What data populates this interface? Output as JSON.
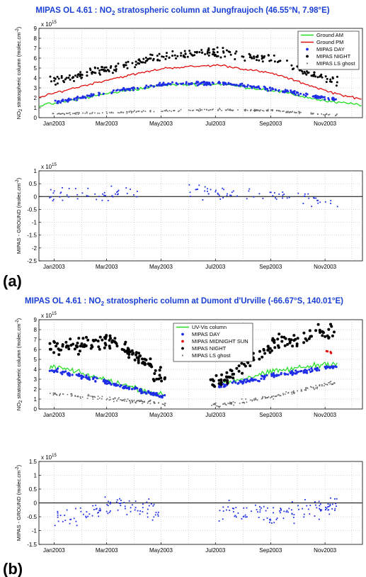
{
  "panels": [
    {
      "label": "(a)",
      "title_pre": "MIPAS OL 4.61 : NO",
      "title_sub": "2",
      "title_post": " stratospheric column at Jungfraujoch (46.55°N, 7.98°E)"
    },
    {
      "label": "(b)",
      "title_pre": "MIPAS OL 4.61 : NO",
      "title_sub": "2",
      "title_post": " stratospheric column at Dumont d'Urville (-66.67°S, 140.01°E)"
    }
  ],
  "colors": {
    "title": "#1a3fd6",
    "ground_am": "#22dd22",
    "ground_pm": "#e01010",
    "uvvis": "#22dd22",
    "mipas_day": "#1f2ee6",
    "mipas_midnight_sun": "#e01010",
    "mipas_night": "#000000",
    "ghost": "#666666",
    "diff": "#1f2ee6"
  },
  "chart_data": [
    {
      "type": "scatter",
      "panel": "a-top",
      "ylabel_pre": "NO",
      "ylabel_sub": "2",
      "ylabel_post": " stratospheric column (molec.cm",
      "ylabel_sup": "-2",
      "ylabel_end": ")",
      "exponent_label": "x 10",
      "exponent_value": "15",
      "ylim": [
        0,
        9
      ],
      "yticks": [
        "0",
        "1",
        "2",
        "3",
        "4",
        "5",
        "6",
        "7",
        "8",
        "9"
      ],
      "xticks": [
        "Jan2003",
        "Mar2003",
        "May2003",
        "Jul2003",
        "Sep2003",
        "Nov2003"
      ],
      "grid": true,
      "legend_placement": "top-right",
      "legend": [
        "Ground AM",
        "Ground PM",
        "MIPAS DAY",
        "MIPAS NIGHT",
        "MIPAS LS ghost"
      ],
      "series": [
        {
          "name": "Ground AM",
          "style": "line",
          "x": [
            "Dec2002",
            "Jan2003",
            "Mar2003",
            "May2003",
            "Jul2003",
            "Sep2003",
            "Nov2003",
            "Dec2003"
          ],
          "values": [
            1.2,
            1.5,
            2.5,
            3.3,
            3.4,
            2.7,
            1.6,
            1.3
          ]
        },
        {
          "name": "Ground PM",
          "style": "line",
          "x": [
            "Dec2002",
            "Jan2003",
            "Mar2003",
            "May2003",
            "Jul2003",
            "Sep2003",
            "Nov2003",
            "Dec2003"
          ],
          "values": [
            2.0,
            2.6,
            3.9,
            5.0,
            5.3,
            4.4,
            2.6,
            1.8
          ]
        },
        {
          "name": "MIPAS DAY",
          "style": "dots",
          "x": [
            "Jan2003",
            "Mar2003",
            "May2003",
            "Jul2003",
            "Sep2003",
            "Nov2003"
          ],
          "values": [
            1.6,
            2.6,
            3.4,
            3.5,
            2.8,
            1.9
          ]
        },
        {
          "name": "MIPAS NIGHT",
          "style": "dots",
          "x": [
            "Jan2003",
            "Mar2003",
            "May2003",
            "Jul2003",
            "Sep2003",
            "Nov2003"
          ],
          "values": [
            3.7,
            5.0,
            6.3,
            6.6,
            5.8,
            3.8
          ]
        },
        {
          "name": "MIPAS LS ghost",
          "style": "dots",
          "x": [
            "Jan2003",
            "Mar2003",
            "May2003",
            "Jul2003",
            "Sep2003",
            "Nov2003"
          ],
          "values": [
            0.4,
            0.5,
            0.7,
            0.8,
            0.7,
            0.3
          ]
        }
      ]
    },
    {
      "type": "scatter",
      "panel": "a-bottom",
      "ylabel_pre": "MIPAS - GROUND (molec.cm",
      "ylabel_sup": "-2",
      "ylabel_end": ")",
      "exponent_label": "x 10",
      "exponent_value": "15",
      "ylim": [
        -2.5,
        1
      ],
      "yticks": [
        "-2.5",
        "-2",
        "-1.5",
        "-1",
        "-0.5",
        "0",
        "0.5",
        "1"
      ],
      "xticks": [
        "Jan2003",
        "Mar2003",
        "May2003",
        "Jul2003",
        "Sep2003",
        "Nov2003"
      ],
      "grid": true,
      "series": [
        {
          "name": "MIPAS - GROUND",
          "style": "dots",
          "x": [
            "Jan2003",
            "Mar2003",
            "May2003",
            "Jul2003",
            "Sep2003",
            "Nov2003"
          ],
          "values": [
            0.05,
            0.1,
            0.2,
            0.15,
            0.1,
            -0.2
          ]
        }
      ]
    },
    {
      "type": "scatter",
      "panel": "b-top",
      "ylabel_pre": "NO",
      "ylabel_sub": "2",
      "ylabel_post": " stratospheric column (molec.cm",
      "ylabel_sup": "-2",
      "ylabel_end": ")",
      "exponent_label": "x 10",
      "exponent_value": "15",
      "ylim": [
        0,
        9
      ],
      "yticks": [
        "0",
        "1",
        "2",
        "3",
        "4",
        "5",
        "6",
        "7",
        "8",
        "9"
      ],
      "xticks": [
        "Jan2003",
        "Mar2003",
        "May2003",
        "Jul2003",
        "Sep2003",
        "Nov2003"
      ],
      "grid": true,
      "legend_placement": "top-center",
      "legend": [
        "UV-Vis column",
        "MIPAS DAY",
        "MIPAS MIDNIGHT SUN",
        "MIPAS NIGHT",
        "MIPAS LS ghost"
      ],
      "series": [
        {
          "name": "UV-Vis column",
          "style": "line",
          "x": [
            "Jan2003",
            "Mar2003",
            "May2003",
            "Sep2003",
            "Nov2003"
          ],
          "values": [
            4.2,
            2.8,
            1.3,
            3.8,
            4.6
          ]
        },
        {
          "name": "MIPAS DAY",
          "style": "dots",
          "x": [
            "Jan2003",
            "Mar2003",
            "May2003",
            "Sep2003",
            "Nov2003"
          ],
          "values": [
            3.8,
            2.6,
            1.2,
            3.4,
            4.2
          ]
        },
        {
          "name": "MIPAS MIDNIGHT SUN",
          "style": "dots",
          "x": [
            "Nov2003"
          ],
          "values": [
            5.8
          ]
        },
        {
          "name": "MIPAS NIGHT",
          "style": "dots",
          "x": [
            "Jan2003",
            "Mar2003",
            "May2003",
            "Jul2003",
            "Sep2003",
            "Nov2003"
          ],
          "values": [
            6.0,
            7.0,
            3.0,
            2.7,
            6.5,
            7.8
          ]
        },
        {
          "name": "MIPAS LS ghost",
          "style": "dots",
          "x": [
            "Jan2003",
            "Mar2003",
            "May2003",
            "Jul2003",
            "Sep2003",
            "Nov2003"
          ],
          "values": [
            1.5,
            1.0,
            0.5,
            0.4,
            1.3,
            2.6
          ]
        }
      ]
    },
    {
      "type": "scatter",
      "panel": "b-bottom",
      "ylabel_pre": "MIPAS - GROUND (molec.cm",
      "ylabel_sup": "-2",
      "ylabel_end": ")",
      "exponent_label": "x 10",
      "exponent_value": "15",
      "ylim": [
        -1.5,
        1.5
      ],
      "yticks": [
        "-1.5",
        "-1",
        "-0.5",
        "0",
        "0.5",
        "1",
        "1.5"
      ],
      "xticks": [
        "Jan2003",
        "Mar2003",
        "May2003",
        "Jul2003",
        "Sep2003",
        "Nov2003"
      ],
      "grid": true,
      "series": [
        {
          "name": "MIPAS - GROUND",
          "style": "dots",
          "x": [
            "Jan2003",
            "Mar2003",
            "May2003",
            "Sep2003",
            "Nov2003"
          ],
          "values": [
            -0.6,
            -0.1,
            -0.3,
            -0.4,
            -0.1
          ]
        }
      ]
    }
  ]
}
